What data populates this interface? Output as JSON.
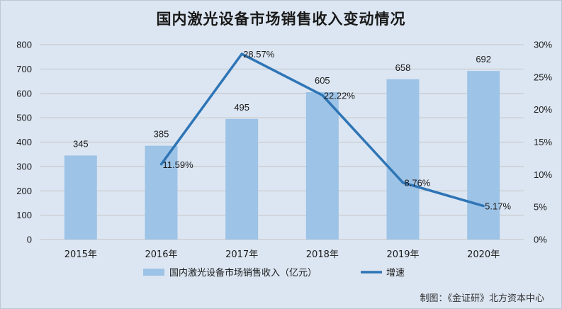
{
  "chart_data": {
    "type": "bar",
    "title": "国内激光设备市场销售收入变动情况",
    "categories": [
      "2015年",
      "2016年",
      "2017年",
      "2018年",
      "2019年",
      "2020年"
    ],
    "series": [
      {
        "name": "国内激光设备市场销售收入（亿元）",
        "type": "bar",
        "axis": "left",
        "color": "#9dc3e6",
        "values": [
          345,
          385,
          495,
          605,
          658,
          692
        ],
        "labels": [
          "345",
          "385",
          "495",
          "605",
          "658",
          "692"
        ]
      },
      {
        "name": "增速",
        "type": "line",
        "axis": "right",
        "color": "#2e75b6",
        "values": [
          null,
          11.59,
          28.57,
          22.22,
          8.76,
          5.17
        ],
        "labels": [
          "",
          "11.59%",
          "28.57%",
          "22.22%",
          "8.76%",
          "5.17%"
        ]
      }
    ],
    "y_left": {
      "min": 0,
      "max": 800,
      "step": 100,
      "ticks": [
        "0",
        "100",
        "200",
        "300",
        "400",
        "500",
        "600",
        "700",
        "800"
      ]
    },
    "y_right": {
      "min": 0,
      "max": 30,
      "step": 5,
      "ticks": [
        "0%",
        "5%",
        "10%",
        "15%",
        "20%",
        "25%",
        "30%"
      ]
    },
    "grid": true,
    "legend_position": "bottom",
    "source": "制图：《金证研》北方资本中心"
  }
}
